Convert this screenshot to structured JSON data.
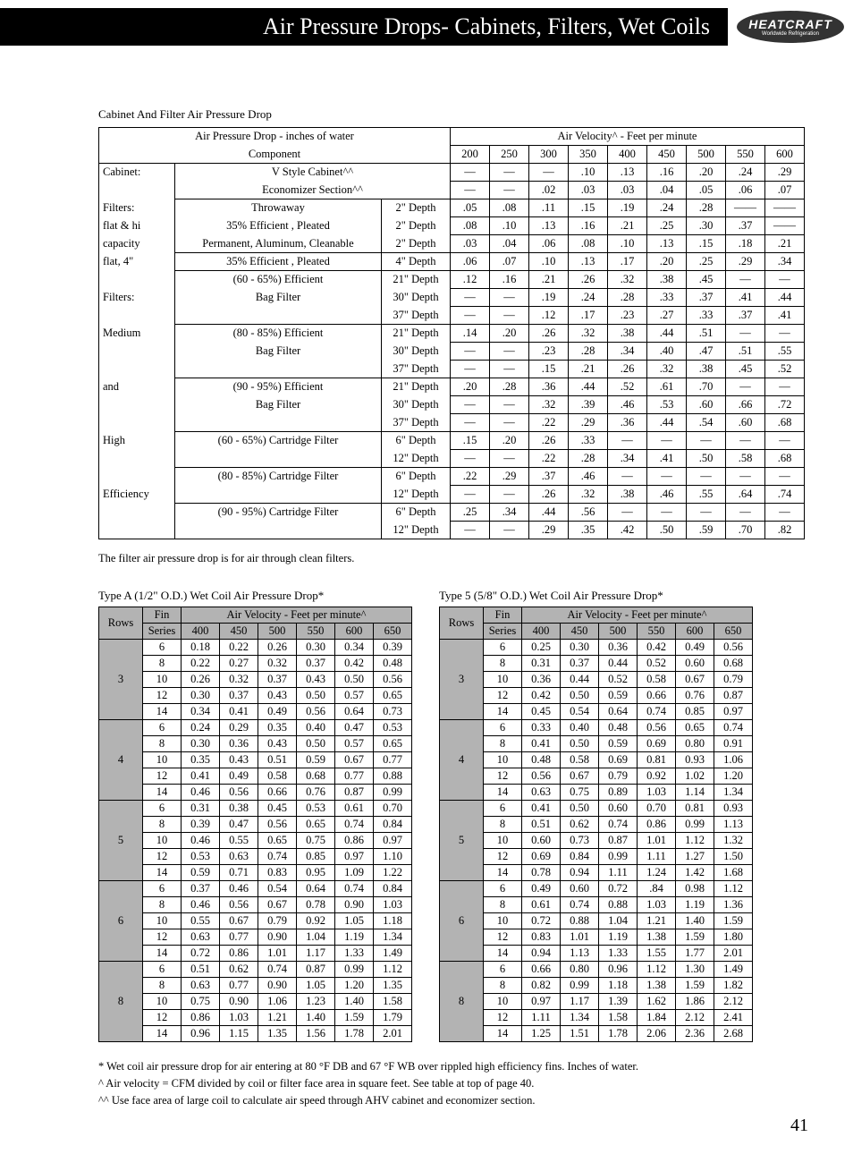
{
  "header": {
    "title": "Air Pressure Drops- Cabinets, Filters, Wet Coils",
    "logo_main": "HEATCRAFT",
    "logo_sub": "Worldwide Refrigeration"
  },
  "table1": {
    "title": "Cabinet And Filter Air Pressure Drop",
    "hdr_left1": "Air Pressure Drop - inches of water",
    "hdr_left2": "Component",
    "hdr_right": "Air Velocity^ - Feet  per minute",
    "vel_cols": [
      "200",
      "250",
      "300",
      "350",
      "400",
      "450",
      "500",
      "550",
      "600"
    ],
    "left_labels": [
      "Cabinet:",
      "",
      "Filters:",
      "flat & hi",
      "capacity",
      "flat, 4\"",
      "",
      "Filters:",
      "",
      "Medium",
      "",
      "",
      "and",
      "",
      "",
      "High",
      "",
      "",
      "Efficiency",
      "",
      ""
    ],
    "rows": [
      {
        "comp": "V Style Cabinet^^",
        "dep": "",
        "v": [
          "—",
          "—",
          "—",
          ".10",
          ".13",
          ".16",
          ".20",
          ".24",
          ".29"
        ]
      },
      {
        "comp": "Economizer Section^^",
        "dep": "",
        "v": [
          "—",
          "—",
          ".02",
          ".03",
          ".03",
          ".04",
          ".05",
          ".06",
          ".07"
        ]
      },
      {
        "comp": "Throwaway",
        "dep": "2\" Depth",
        "v": [
          ".05",
          ".08",
          ".11",
          ".15",
          ".19",
          ".24",
          ".28",
          "——",
          "——"
        ]
      },
      {
        "comp": "35% Efficient , Pleated",
        "dep": "2\" Depth",
        "v": [
          ".08",
          ".10",
          ".13",
          ".16",
          ".21",
          ".25",
          ".30",
          ".37",
          "——"
        ]
      },
      {
        "comp": "Permanent, Aluminum, Cleanable",
        "dep": "2\" Depth",
        "v": [
          ".03",
          ".04",
          ".06",
          ".08",
          ".10",
          ".13",
          ".15",
          ".18",
          ".21"
        ]
      },
      {
        "comp": "35% Efficient , Pleated",
        "dep": "4\" Depth",
        "v": [
          ".06",
          ".07",
          ".10",
          ".13",
          ".17",
          ".20",
          ".25",
          ".29",
          ".34"
        ]
      },
      {
        "comp": "(60 - 65%) Efficient",
        "dep": "21\" Depth",
        "v": [
          ".12",
          ".16",
          ".21",
          ".26",
          ".32",
          ".38",
          ".45",
          "—",
          "—"
        ]
      },
      {
        "comp": "Bag Filter",
        "dep": "30\" Depth",
        "v": [
          "—",
          "—",
          ".19",
          ".24",
          ".28",
          ".33",
          ".37",
          ".41",
          ".44"
        ]
      },
      {
        "comp": "",
        "dep": "37\" Depth",
        "v": [
          "—",
          "—",
          ".12",
          ".17",
          ".23",
          ".27",
          ".33",
          ".37",
          ".41"
        ]
      },
      {
        "comp": "(80 - 85%) Efficient",
        "dep": "21\" Depth",
        "v": [
          ".14",
          ".20",
          ".26",
          ".32",
          ".38",
          ".44",
          ".51",
          "—",
          "—"
        ]
      },
      {
        "comp": "Bag Filter",
        "dep": "30\" Depth",
        "v": [
          "—",
          "—",
          ".23",
          ".28",
          ".34",
          ".40",
          ".47",
          ".51",
          ".55"
        ]
      },
      {
        "comp": "",
        "dep": "37\" Depth",
        "v": [
          "—",
          "—",
          ".15",
          ".21",
          ".26",
          ".32",
          ".38",
          ".45",
          ".52"
        ]
      },
      {
        "comp": "(90 - 95%) Efficient",
        "dep": "21\" Depth",
        "v": [
          ".20",
          ".28",
          ".36",
          ".44",
          ".52",
          ".61",
          ".70",
          "—",
          "—"
        ]
      },
      {
        "comp": "Bag Filter",
        "dep": "30\" Depth",
        "v": [
          "—",
          "—",
          ".32",
          ".39",
          ".46",
          ".53",
          ".60",
          ".66",
          ".72"
        ]
      },
      {
        "comp": "",
        "dep": "37\" Depth",
        "v": [
          "—",
          "—",
          ".22",
          ".29",
          ".36",
          ".44",
          ".54",
          ".60",
          ".68"
        ]
      },
      {
        "comp": "(60 - 65%) Cartridge  Filter",
        "dep": "6\" Depth",
        "v": [
          ".15",
          ".20",
          ".26",
          ".33",
          "—",
          "—",
          "—",
          "—",
          "—"
        ]
      },
      {
        "comp": "",
        "dep": "12\" Depth",
        "v": [
          "—",
          "—",
          ".22",
          ".28",
          ".34",
          ".41",
          ".50",
          ".58",
          ".68"
        ]
      },
      {
        "comp": "(80 - 85%) Cartridge  Filter",
        "dep": "6\" Depth",
        "v": [
          ".22",
          ".29",
          ".37",
          ".46",
          "—",
          "—",
          "—",
          "—",
          "—"
        ]
      },
      {
        "comp": "",
        "dep": "12\" Depth",
        "v": [
          "—",
          "—",
          ".26",
          ".32",
          ".38",
          ".46",
          ".55",
          ".64",
          ".74"
        ]
      },
      {
        "comp": "(90 - 95%) Cartridge  Filter",
        "dep": "6\" Depth",
        "v": [
          ".25",
          ".34",
          ".44",
          ".56",
          "—",
          "—",
          "—",
          "—",
          "—"
        ]
      },
      {
        "comp": "",
        "dep": "12\" Depth",
        "v": [
          "—",
          "—",
          ".29",
          ".35",
          ".42",
          ".50",
          ".59",
          ".70",
          ".82"
        ]
      }
    ],
    "groups": [
      [
        0,
        1
      ],
      [
        2,
        4
      ],
      [
        5,
        5
      ],
      [
        6,
        8
      ],
      [
        9,
        11
      ],
      [
        12,
        14
      ],
      [
        15,
        16
      ],
      [
        17,
        18
      ],
      [
        19,
        20
      ]
    ],
    "footnote": "The filter air pressure drop is for air through clean filters."
  },
  "coilA": {
    "title": "Type A  (1/2\" O.D.)  Wet Coil Air Pressure Drop*",
    "hdr_rows": "Rows",
    "hdr_fin": "Fin",
    "hdr_fin2": "Series",
    "hdr_vel": "Air Velocity - Feet  per minute^",
    "vel_cols": [
      "400",
      "450",
      "500",
      "550",
      "600",
      "650"
    ],
    "groups": [
      {
        "rows": "3",
        "fins": [
          "6",
          "8",
          "10",
          "12",
          "14"
        ],
        "v": [
          [
            "0.18",
            "0.22",
            "0.26",
            "0.30",
            "0.34",
            "0.39"
          ],
          [
            "0.22",
            "0.27",
            "0.32",
            "0.37",
            "0.42",
            "0.48"
          ],
          [
            "0.26",
            "0.32",
            "0.37",
            "0.43",
            "0.50",
            "0.56"
          ],
          [
            "0.30",
            "0.37",
            "0.43",
            "0.50",
            "0.57",
            "0.65"
          ],
          [
            "0.34",
            "0.41",
            "0.49",
            "0.56",
            "0.64",
            "0.73"
          ]
        ]
      },
      {
        "rows": "4",
        "fins": [
          "6",
          "8",
          "10",
          "12",
          "14"
        ],
        "v": [
          [
            "0.24",
            "0.29",
            "0.35",
            "0.40",
            "0.47",
            "0.53"
          ],
          [
            "0.30",
            "0.36",
            "0.43",
            "0.50",
            "0.57",
            "0.65"
          ],
          [
            "0.35",
            "0.43",
            "0.51",
            "0.59",
            "0.67",
            "0.77"
          ],
          [
            "0.41",
            "0.49",
            "0.58",
            "0.68",
            "0.77",
            "0.88"
          ],
          [
            "0.46",
            "0.56",
            "0.66",
            "0.76",
            "0.87",
            "0.99"
          ]
        ]
      },
      {
        "rows": "5",
        "fins": [
          "6",
          "8",
          "10",
          "12",
          "14"
        ],
        "v": [
          [
            "0.31",
            "0.38",
            "0.45",
            "0.53",
            "0.61",
            "0.70"
          ],
          [
            "0.39",
            "0.47",
            "0.56",
            "0.65",
            "0.74",
            "0.84"
          ],
          [
            "0.46",
            "0.55",
            "0.65",
            "0.75",
            "0.86",
            "0.97"
          ],
          [
            "0.53",
            "0.63",
            "0.74",
            "0.85",
            "0.97",
            "1.10"
          ],
          [
            "0.59",
            "0.71",
            "0.83",
            "0.95",
            "1.09",
            "1.22"
          ]
        ]
      },
      {
        "rows": "6",
        "fins": [
          "6",
          "8",
          "10",
          "12",
          "14"
        ],
        "v": [
          [
            "0.37",
            "0.46",
            "0.54",
            "0.64",
            "0.74",
            "0.84"
          ],
          [
            "0.46",
            "0.56",
            "0.67",
            "0.78",
            "0.90",
            "1.03"
          ],
          [
            "0.55",
            "0.67",
            "0.79",
            "0.92",
            "1.05",
            "1.18"
          ],
          [
            "0.63",
            "0.77",
            "0.90",
            "1.04",
            "1.19",
            "1.34"
          ],
          [
            "0.72",
            "0.86",
            "1.01",
            "1.17",
            "1.33",
            "1.49"
          ]
        ]
      },
      {
        "rows": "8",
        "fins": [
          "6",
          "8",
          "10",
          "12",
          "14"
        ],
        "v": [
          [
            "0.51",
            "0.62",
            "0.74",
            "0.87",
            "0.99",
            "1.12"
          ],
          [
            "0.63",
            "0.77",
            "0.90",
            "1.05",
            "1.20",
            "1.35"
          ],
          [
            "0.75",
            "0.90",
            "1.06",
            "1.23",
            "1.40",
            "1.58"
          ],
          [
            "0.86",
            "1.03",
            "1.21",
            "1.40",
            "1.59",
            "1.79"
          ],
          [
            "0.96",
            "1.15",
            "1.35",
            "1.56",
            "1.78",
            "2.01"
          ]
        ]
      }
    ]
  },
  "coil5": {
    "title": "Type 5  (5/8\" O.D.)  Wet Coil Air Pressure Drop*",
    "hdr_rows": "Rows",
    "hdr_fin": "Fin",
    "hdr_fin2": "Series",
    "hdr_vel": "Air Velocity - Feet  per minute^",
    "vel_cols": [
      "400",
      "450",
      "500",
      "550",
      "600",
      "650"
    ],
    "groups": [
      {
        "rows": "3",
        "fins": [
          "6",
          "8",
          "10",
          "12",
          "14"
        ],
        "v": [
          [
            "0.25",
            "0.30",
            "0.36",
            "0.42",
            "0.49",
            "0.56"
          ],
          [
            "0.31",
            "0.37",
            "0.44",
            "0.52",
            "0.60",
            "0.68"
          ],
          [
            "0.36",
            "0.44",
            "0.52",
            "0.58",
            "0.67",
            "0.79"
          ],
          [
            "0.42",
            "0.50",
            "0.59",
            "0.66",
            "0.76",
            "0.87"
          ],
          [
            "0.45",
            "0.54",
            "0.64",
            "0.74",
            "0.85",
            "0.97"
          ]
        ]
      },
      {
        "rows": "4",
        "fins": [
          "6",
          "8",
          "10",
          "12",
          "14"
        ],
        "v": [
          [
            "0.33",
            "0.40",
            "0.48",
            "0.56",
            "0.65",
            "0.74"
          ],
          [
            "0.41",
            "0.50",
            "0.59",
            "0.69",
            "0.80",
            "0.91"
          ],
          [
            "0.48",
            "0.58",
            "0.69",
            "0.81",
            "0.93",
            "1.06"
          ],
          [
            "0.56",
            "0.67",
            "0.79",
            "0.92",
            "1.02",
            "1.20"
          ],
          [
            "0.63",
            "0.75",
            "0.89",
            "1.03",
            "1.14",
            "1.34"
          ]
        ]
      },
      {
        "rows": "5",
        "fins": [
          "6",
          "8",
          "10",
          "12",
          "14"
        ],
        "v": [
          [
            "0.41",
            "0.50",
            "0.60",
            "0.70",
            "0.81",
            "0.93"
          ],
          [
            "0.51",
            "0.62",
            "0.74",
            "0.86",
            "0.99",
            "1.13"
          ],
          [
            "0.60",
            "0.73",
            "0.87",
            "1.01",
            "1.12",
            "1.32"
          ],
          [
            "0.69",
            "0.84",
            "0.99",
            "1.11",
            "1.27",
            "1.50"
          ],
          [
            "0.78",
            "0.94",
            "1.11",
            "1.24",
            "1.42",
            "1.68"
          ]
        ]
      },
      {
        "rows": "6",
        "fins": [
          "6",
          "8",
          "10",
          "12",
          "14"
        ],
        "v": [
          [
            "0.49",
            "0.60",
            "0.72",
            ".84",
            "0.98",
            "1.12"
          ],
          [
            "0.61",
            "0.74",
            "0.88",
            "1.03",
            "1.19",
            "1.36"
          ],
          [
            "0.72",
            "0.88",
            "1.04",
            "1.21",
            "1.40",
            "1.59"
          ],
          [
            "0.83",
            "1.01",
            "1.19",
            "1.38",
            "1.59",
            "1.80"
          ],
          [
            "0.94",
            "1.13",
            "1.33",
            "1.55",
            "1.77",
            "2.01"
          ]
        ]
      },
      {
        "rows": "8",
        "fins": [
          "6",
          "8",
          "10",
          "12",
          "14"
        ],
        "v": [
          [
            "0.66",
            "0.80",
            "0.96",
            "1.12",
            "1.30",
            "1.49"
          ],
          [
            "0.82",
            "0.99",
            "1.18",
            "1.38",
            "1.59",
            "1.82"
          ],
          [
            "0.97",
            "1.17",
            "1.39",
            "1.62",
            "1.86",
            "2.12"
          ],
          [
            "1.11",
            "1.34",
            "1.58",
            "1.84",
            "2.12",
            "2.41"
          ],
          [
            "1.25",
            "1.51",
            "1.78",
            "2.06",
            "2.36",
            "2.68"
          ]
        ]
      }
    ]
  },
  "notes": [
    "*   Wet coil air pressure drop for air entering at 80 °F DB and 67 °F WB over rippled high efficiency fins.  Inches of water.",
    "^   Air velocity = CFM divided by coil or filter face area in square feet.  See table at top of page 40.",
    "^^  Use face area of large coil to calculate air speed through AHV cabinet and economizer section."
  ],
  "page_number": "41"
}
